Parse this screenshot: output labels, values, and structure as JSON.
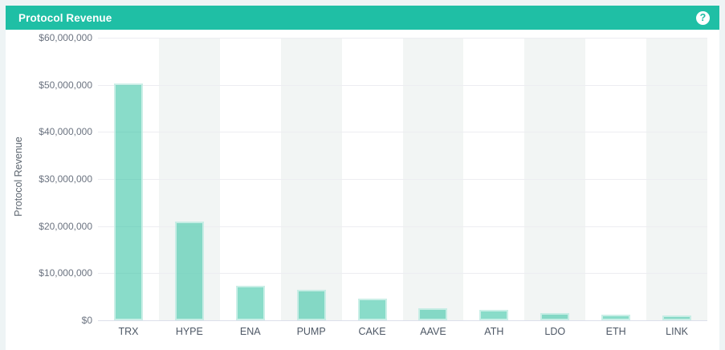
{
  "header": {
    "title": "Protocol Revenue",
    "help_label": "?"
  },
  "colors": {
    "accent_teal": "#1fbfa5",
    "bar_fill": "#40c7a8",
    "bar_border": "#ffffff",
    "band_gray": "#f2f5f4",
    "gridline": "#ededf1",
    "axis_line": "#dde0eb",
    "y_label": "#6b7380",
    "x_label": "#4e5866",
    "page_background": "#eef4f5"
  },
  "chart_data": {
    "type": "bar",
    "title": "Protocol Revenue",
    "categories": [
      "TRX",
      "HYPE",
      "ENA",
      "PUMP",
      "CAKE",
      "AAVE",
      "ATH",
      "LDO",
      "ETH",
      "LINK"
    ],
    "values": [
      50300000,
      21000000,
      7400000,
      6500000,
      4600000,
      2600000,
      2300000,
      1500000,
      1200000,
      1100000
    ],
    "xlabel": "",
    "ylabel": "Protocol Revenue",
    "ylim": [
      0,
      60000000
    ],
    "ytick_step": 10000000,
    "ytick_labels": [
      "$0",
      "$10,000,000",
      "$20,000,000",
      "$30,000,000",
      "$40,000,000",
      "$50,000,000",
      "$60,000,000"
    ],
    "grid": true,
    "legend": false,
    "alternating_column_bands": true
  }
}
